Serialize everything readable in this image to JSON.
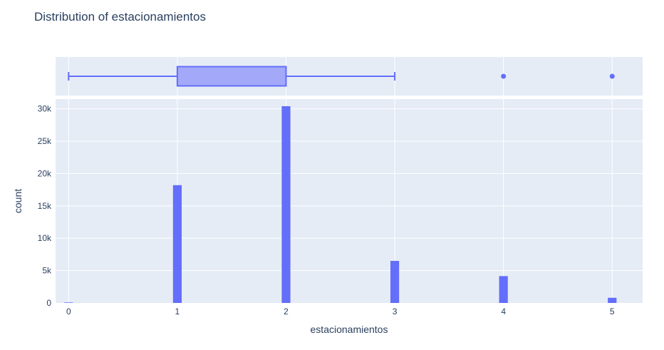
{
  "chart_data": {
    "type": "histogram",
    "title": "Distribution of estacionamientos",
    "xlabel": "estacionamientos",
    "ylabel": "count",
    "colors": {
      "bar": "#636efa",
      "box_fill": "#a3a9f8",
      "plot_bg": "#e5ecf6",
      "grid": "#ffffff",
      "text": "#2a3f5f"
    },
    "histogram": {
      "x": [
        0,
        1,
        2,
        3,
        4,
        5
      ],
      "counts": [
        80,
        18200,
        30400,
        6500,
        4150,
        800
      ],
      "xlim": [
        -0.12,
        5.28
      ],
      "ylim": [
        0,
        31500
      ],
      "x_ticks": [
        0,
        1,
        2,
        3,
        4,
        5
      ],
      "x_tick_labels": [
        "0",
        "1",
        "2",
        "3",
        "4",
        "5"
      ],
      "y_ticks": [
        0,
        5000,
        10000,
        15000,
        20000,
        25000,
        30000
      ],
      "y_tick_labels": [
        "0",
        "5k",
        "10k",
        "15k",
        "20k",
        "25k",
        "30k"
      ],
      "bin_width": 0.08
    },
    "boxplot": {
      "min": 0,
      "q1": 1,
      "median": 2,
      "q3": 2,
      "upper_fence": 3,
      "outliers": [
        4,
        5
      ]
    }
  }
}
